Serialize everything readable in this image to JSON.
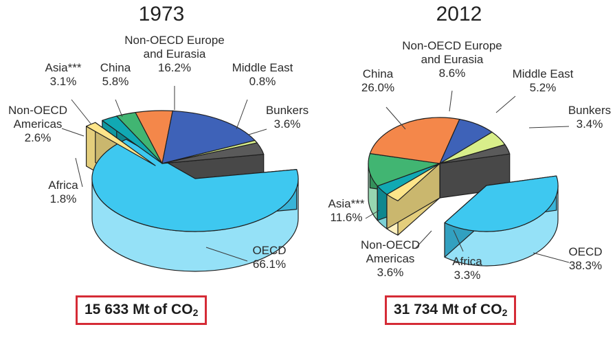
{
  "colors": {
    "OECD": "#3ec8f0",
    "Non-OECD Europe and Eurasia": "#3e62b8",
    "Middle East": "#d8ee8a",
    "Bunkers": "#5a5a5a",
    "China": "#f4874a",
    "Asia": "#41b572",
    "Non-OECD Americas": "#11a9b3",
    "Africa": "#fde58a"
  },
  "chart_data": [
    {
      "type": "pie",
      "title": "1973",
      "total": {
        "value": "15 633",
        "unit": "Mt of CO",
        "sub": "2"
      },
      "slices": [
        {
          "key": "OECD",
          "name": "OECD",
          "value": 66.1,
          "display": "66.1%"
        },
        {
          "key": "Africa",
          "name": "Africa",
          "value": 1.8,
          "display": "1.8%"
        },
        {
          "key": "Non-OECD Americas",
          "name": "Non-OECD\nAmericas",
          "value": 2.6,
          "display": "2.6%"
        },
        {
          "key": "Asia",
          "name": "Asia***",
          "value": 3.1,
          "display": "3.1%"
        },
        {
          "key": "China",
          "name": "China",
          "value": 5.8,
          "display": "5.8%"
        },
        {
          "key": "Non-OECD Europe and Eurasia",
          "name": "Non-OECD Europe\nand Eurasia",
          "value": 16.2,
          "display": "16.2%"
        },
        {
          "key": "Middle East",
          "name": "Middle East",
          "value": 0.8,
          "display": "0.8%"
        },
        {
          "key": "Bunkers",
          "name": "Bunkers",
          "value": 3.6,
          "display": "3.6%"
        }
      ]
    },
    {
      "type": "pie",
      "title": "2012",
      "total": {
        "value": "31 734",
        "unit": "Mt of CO",
        "sub": "2"
      },
      "slices": [
        {
          "key": "OECD",
          "name": "OECD",
          "value": 38.3,
          "display": "38.3%"
        },
        {
          "key": "Africa",
          "name": "Africa",
          "value": 3.3,
          "display": "3.3%"
        },
        {
          "key": "Non-OECD Americas",
          "name": "Non-OECD\nAmericas",
          "value": 3.6,
          "display": "3.6%"
        },
        {
          "key": "Asia",
          "name": "Asia***",
          "value": 11.6,
          "display": "11.6%"
        },
        {
          "key": "China",
          "name": "China",
          "value": 26.0,
          "display": "26.0%"
        },
        {
          "key": "Non-OECD Europe and Eurasia",
          "name": "Non-OECD Europe\nand Eurasia",
          "value": 8.6,
          "display": "8.6%"
        },
        {
          "key": "Middle East",
          "name": "Middle East",
          "value": 5.2,
          "display": "5.2%"
        },
        {
          "key": "Bunkers",
          "name": "Bunkers",
          "value": 3.4,
          "display": "3.4%"
        }
      ]
    }
  ]
}
